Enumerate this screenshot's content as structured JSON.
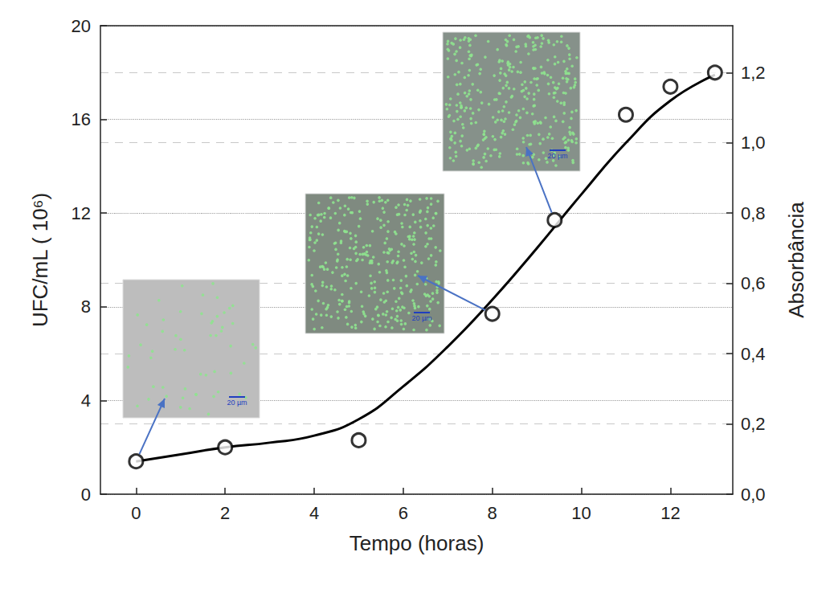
{
  "chart_data": {
    "type": "scatter",
    "x_label": "Tempo (horas)",
    "y_label": "UFC/mL ( 10⁶)",
    "y2_label": "Absorbância",
    "xlim": [
      -0.8,
      13.4
    ],
    "xticks": [
      0,
      2,
      4,
      6,
      8,
      10,
      12
    ],
    "ylim": [
      0,
      20
    ],
    "yticks": [
      0,
      4,
      8,
      12,
      16,
      20
    ],
    "y2lim": [
      0,
      1.3333
    ],
    "y2ticks": [
      {
        "value": 0,
        "label": "0,0"
      },
      {
        "value": 0.2,
        "label": "0,2"
      },
      {
        "value": 0.4,
        "label": "0,4"
      },
      {
        "value": 0.6,
        "label": "0,6"
      },
      {
        "value": 0.8,
        "label": "0,8"
      },
      {
        "value": 1.0,
        "label": "1,0"
      },
      {
        "value": 1.2,
        "label": "1,2"
      }
    ],
    "grid": true,
    "series": [
      {
        "type": "line",
        "color": "#000000",
        "line_style": "solid",
        "x": [
          0,
          1,
          2,
          3,
          4,
          5,
          6,
          7,
          8,
          9,
          10,
          11,
          12,
          13
        ],
        "values": [
          1.4,
          1.7,
          2.0,
          2.2,
          2.5,
          3.2,
          4.6,
          6.3,
          8.3,
          10.5,
          12.8,
          15.0,
          16.8,
          17.9
        ]
      },
      {
        "type": "scatter",
        "color": "#000000",
        "marker": "circle",
        "x": [
          0,
          2,
          5,
          8,
          9.4,
          11,
          12,
          13
        ],
        "values": [
          1.4,
          2.0,
          2.3,
          7.7,
          11.7,
          16.2,
          17.4,
          18.0
        ]
      }
    ],
    "annotations": [
      {
        "text": "20 µm",
        "x": 0
      },
      {
        "text": "20 µm",
        "x": 8
      },
      {
        "text": "20 µm",
        "x": 9.4
      }
    ]
  }
}
